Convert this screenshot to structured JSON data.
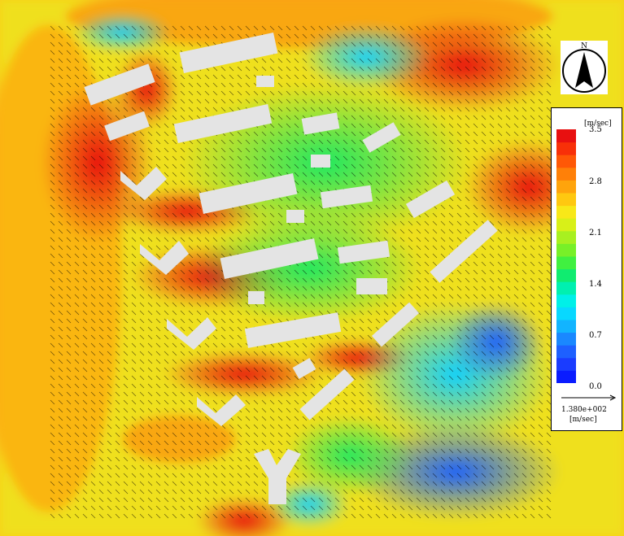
{
  "legend": {
    "unit_top": "[m/sec]",
    "tick_values": [
      "3.5",
      "2.8",
      "2.1",
      "1.4",
      "0.7",
      "0.0"
    ],
    "vector_scale": "1.380e+002",
    "vector_unit": "[m/sec]",
    "color_steps": [
      "#0a1cff",
      "#1a3cff",
      "#1e60ff",
      "#1a88ff",
      "#12b4ff",
      "#08d8ff",
      "#00f0e8",
      "#00f0b0",
      "#10ec70",
      "#40f040",
      "#78f028",
      "#a8f020",
      "#d8f018",
      "#f8e818",
      "#ffc810",
      "#ffa40c",
      "#ff8008",
      "#ff5806",
      "#f83008",
      "#e81010"
    ]
  },
  "compass": {
    "label": "N",
    "icon": "north-arrow-icon"
  },
  "colors": {
    "background": "#f8e818",
    "building": "#e4e4e4"
  }
}
